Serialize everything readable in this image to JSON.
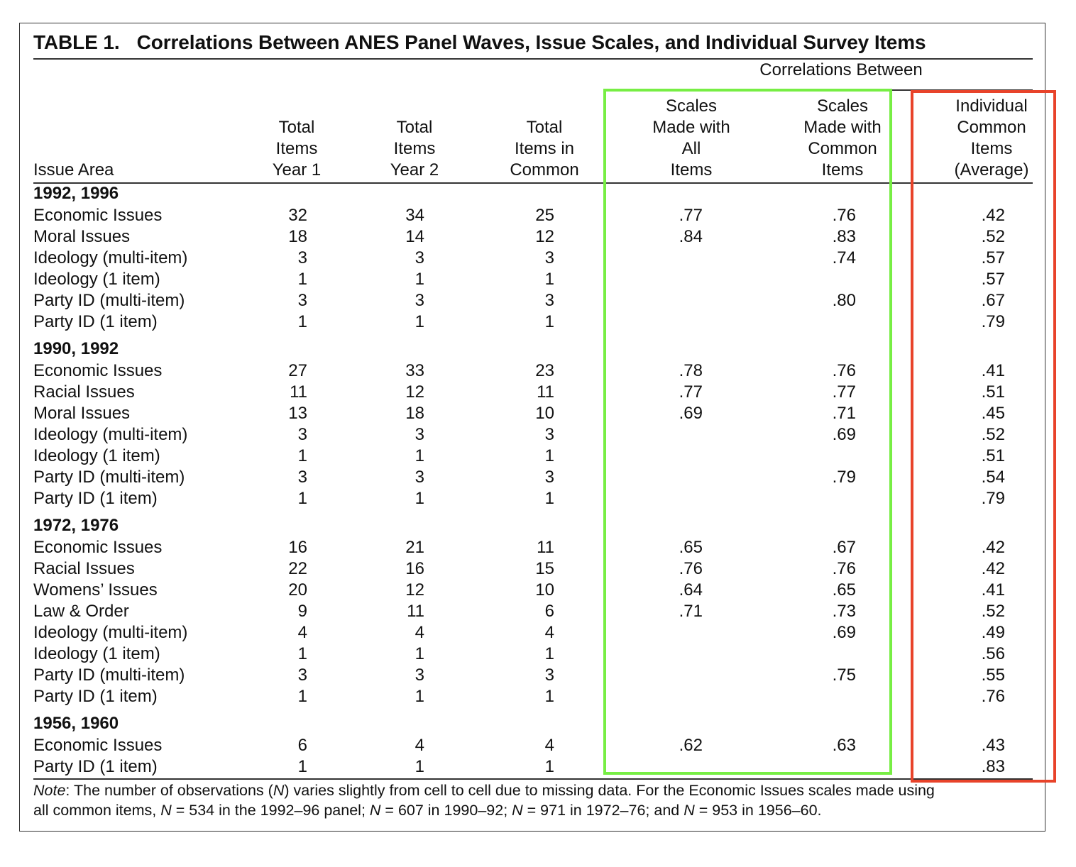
{
  "table": {
    "label": "TABLE 1.",
    "title": "Correlations Between ANES Panel Waves, Issue Scales, and Individual Survey Items",
    "spanner": "Correlations Between",
    "columns": [
      "Issue Area",
      "Total\nItems\nYear 1",
      "Total\nItems\nYear 2",
      "Total\nItems in\nCommon",
      "Scales\nMade with\nAll\nItems",
      "Scales\nMade with\nCommon\nItems",
      "Individual\nCommon\nItems\n(Average)"
    ],
    "highlight_colors": {
      "scales_box": "#77ee44",
      "individual_box": "#e8432a"
    },
    "groups": [
      {
        "label": "1992, 1996",
        "rows": [
          [
            "Economic Issues",
            "32",
            "34",
            "25",
            ".77",
            ".76",
            ".42"
          ],
          [
            "Moral Issues",
            "18",
            "14",
            "12",
            ".84",
            ".83",
            ".52"
          ],
          [
            "Ideology (multi-item)",
            "3",
            "3",
            "3",
            "",
            ".74",
            ".57"
          ],
          [
            "Ideology (1 item)",
            "1",
            "1",
            "1",
            "",
            "",
            ".57"
          ],
          [
            "Party ID (multi-item)",
            "3",
            "3",
            "3",
            "",
            ".80",
            ".67"
          ],
          [
            "Party ID (1 item)",
            "1",
            "1",
            "1",
            "",
            "",
            ".79"
          ]
        ]
      },
      {
        "label": "1990, 1992",
        "rows": [
          [
            "Economic Issues",
            "27",
            "33",
            "23",
            ".78",
            ".76",
            ".41"
          ],
          [
            "Racial Issues",
            "11",
            "12",
            "11",
            ".77",
            ".77",
            ".51"
          ],
          [
            "Moral Issues",
            "13",
            "18",
            "10",
            ".69",
            ".71",
            ".45"
          ],
          [
            "Ideology (multi-item)",
            "3",
            "3",
            "3",
            "",
            ".69",
            ".52"
          ],
          [
            "Ideology (1 item)",
            "1",
            "1",
            "1",
            "",
            "",
            ".51"
          ],
          [
            "Party ID (multi-item)",
            "3",
            "3",
            "3",
            "",
            ".79",
            ".54"
          ],
          [
            "Party ID (1 item)",
            "1",
            "1",
            "1",
            "",
            "",
            ".79"
          ]
        ]
      },
      {
        "label": "1972, 1976",
        "rows": [
          [
            "Economic Issues",
            "16",
            "21",
            "11",
            ".65",
            ".67",
            ".42"
          ],
          [
            "Racial Issues",
            "22",
            "16",
            "15",
            ".76",
            ".76",
            ".42"
          ],
          [
            "Womens’ Issues",
            "20",
            "12",
            "10",
            ".64",
            ".65",
            ".41"
          ],
          [
            "Law & Order",
            "9",
            "11",
            "6",
            ".71",
            ".73",
            ".52"
          ],
          [
            "Ideology (multi-item)",
            "4",
            "4",
            "4",
            "",
            ".69",
            ".49"
          ],
          [
            "Ideology (1 item)",
            "1",
            "1",
            "1",
            "",
            "",
            ".56"
          ],
          [
            "Party ID (multi-item)",
            "3",
            "3",
            "3",
            "",
            ".75",
            ".55"
          ],
          [
            "Party ID (1 item)",
            "1",
            "1",
            "1",
            "",
            "",
            ".76"
          ]
        ]
      },
      {
        "label": "1956, 1960",
        "rows": [
          [
            "Economic Issues",
            "6",
            "4",
            "4",
            ".62",
            ".63",
            ".43"
          ],
          [
            "Party ID (1 item)",
            "1",
            "1",
            "1",
            "",
            "",
            ".83"
          ]
        ]
      }
    ],
    "note": {
      "label": "Note",
      "line1_a": ": The number of observations (",
      "line1_n": "N",
      "line1_b": ") varies slightly from cell to cell due to missing data. For the Economic Issues scales made using",
      "line2_a": "all common items, ",
      "n1": "N",
      "line2_b": " = 534 in the 1992–96 panel; ",
      "n2": "N",
      "line2_c": " = 607 in 1990–92; ",
      "n3": "N",
      "line2_d": " = 971 in 1972–76; and ",
      "n4": "N",
      "line2_e": " = 953 in 1956–60."
    }
  }
}
